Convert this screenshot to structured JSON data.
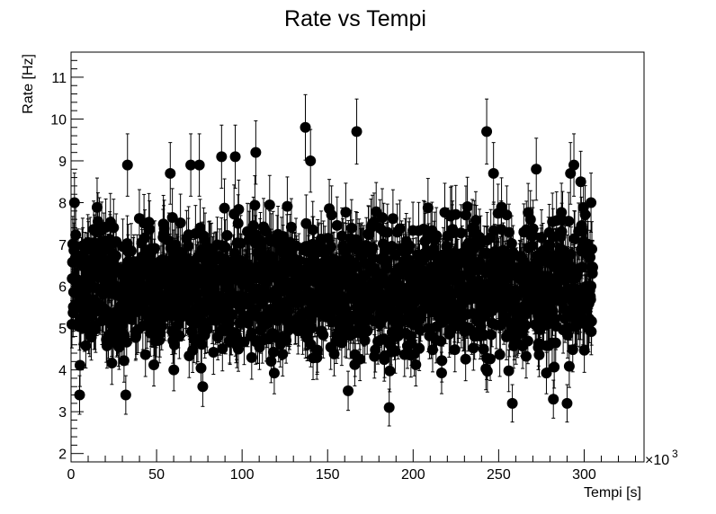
{
  "chart_data": {
    "type": "scatter",
    "title": "Rate vs Tempi",
    "xlabel": "Tempi [s]",
    "ylabel": "Rate [Hz]",
    "x_multiplier_label": "×10",
    "x_multiplier_exp": "3",
    "xlim": [
      0,
      335
    ],
    "ylim": [
      1.8,
      11.6
    ],
    "x_ticks": [
      0,
      50,
      100,
      150,
      200,
      250,
      300
    ],
    "y_ticks": [
      2,
      3,
      4,
      5,
      6,
      7,
      8,
      9,
      10,
      11
    ],
    "x_range": [
      0.5,
      305
    ],
    "y_core": [
      3.9,
      8.0
    ],
    "point_count": 1800,
    "grid": false,
    "legend": "none",
    "marker_color": "#000000",
    "highlighted_points": [
      {
        "x": 32,
        "y": 3.4
      },
      {
        "x": 33,
        "y": 8.9
      },
      {
        "x": 58,
        "y": 8.7
      },
      {
        "x": 70,
        "y": 8.9
      },
      {
        "x": 75,
        "y": 8.9
      },
      {
        "x": 77,
        "y": 3.6
      },
      {
        "x": 88,
        "y": 9.1
      },
      {
        "x": 96,
        "y": 9.1
      },
      {
        "x": 108,
        "y": 9.2
      },
      {
        "x": 137,
        "y": 9.8
      },
      {
        "x": 140,
        "y": 9.0
      },
      {
        "x": 162,
        "y": 3.5
      },
      {
        "x": 167,
        "y": 9.7
      },
      {
        "x": 186,
        "y": 3.1
      },
      {
        "x": 243,
        "y": 9.7
      },
      {
        "x": 247,
        "y": 8.7
      },
      {
        "x": 258,
        "y": 3.2
      },
      {
        "x": 272,
        "y": 8.8
      },
      {
        "x": 282,
        "y": 3.3
      },
      {
        "x": 290,
        "y": 3.2
      },
      {
        "x": 292,
        "y": 8.7
      },
      {
        "x": 294,
        "y": 8.9
      },
      {
        "x": 298,
        "y": 8.5
      },
      {
        "x": 5,
        "y": 3.4
      },
      {
        "x": 2,
        "y": 8.0
      },
      {
        "x": 304,
        "y": 8.0
      }
    ]
  }
}
